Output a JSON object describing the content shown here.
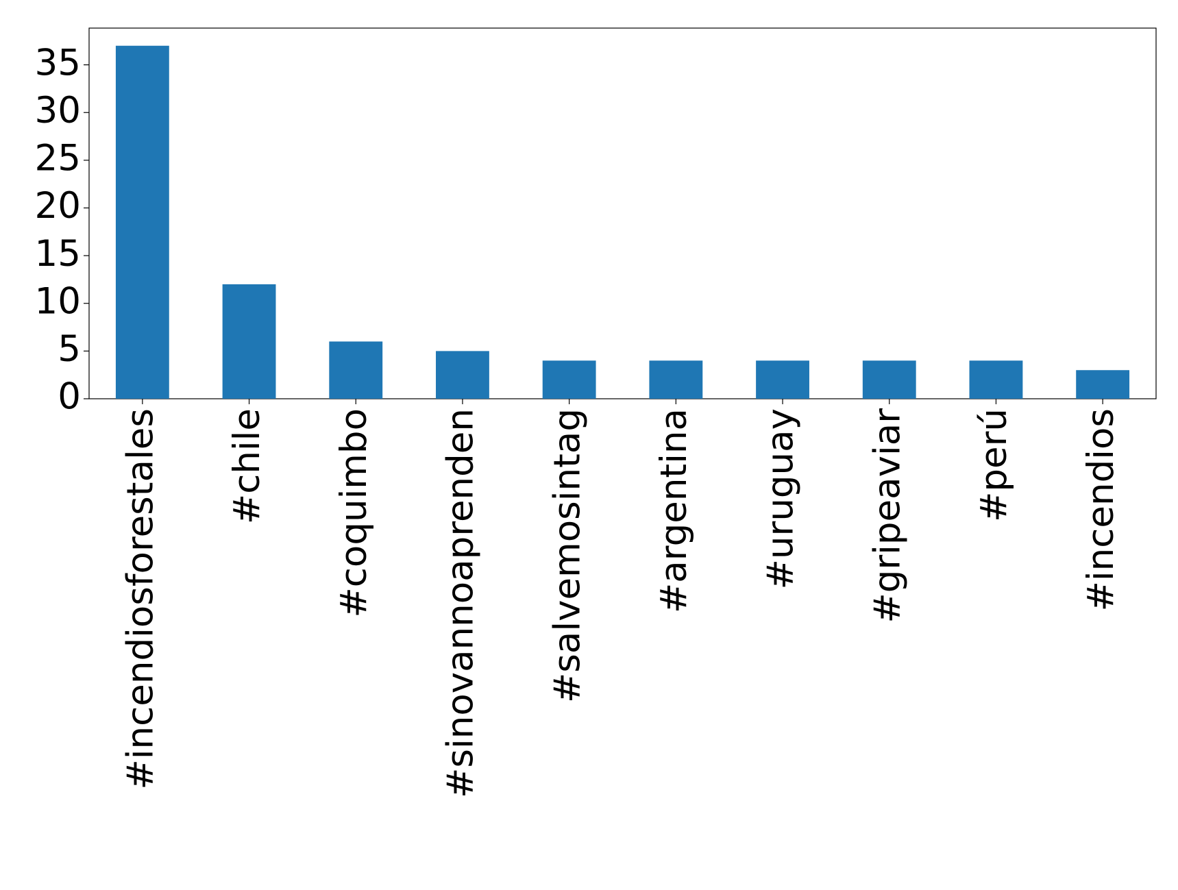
{
  "chart_data": {
    "type": "bar",
    "categories": [
      "#incendiosforestales",
      "#chile",
      "#coquimbo",
      "#sinovannoaprenden",
      "#salvemosintag",
      "#argentina",
      "#uruguay",
      "#gripeaviar",
      "#perú",
      "#incendios"
    ],
    "values": [
      37,
      12,
      6,
      5,
      4,
      4,
      4,
      4,
      4,
      3
    ],
    "color": "#1f77b4",
    "ylim": [
      0,
      38.85
    ],
    "yticks": [
      0,
      5,
      10,
      15,
      20,
      25,
      30,
      35
    ],
    "grid": false
  }
}
